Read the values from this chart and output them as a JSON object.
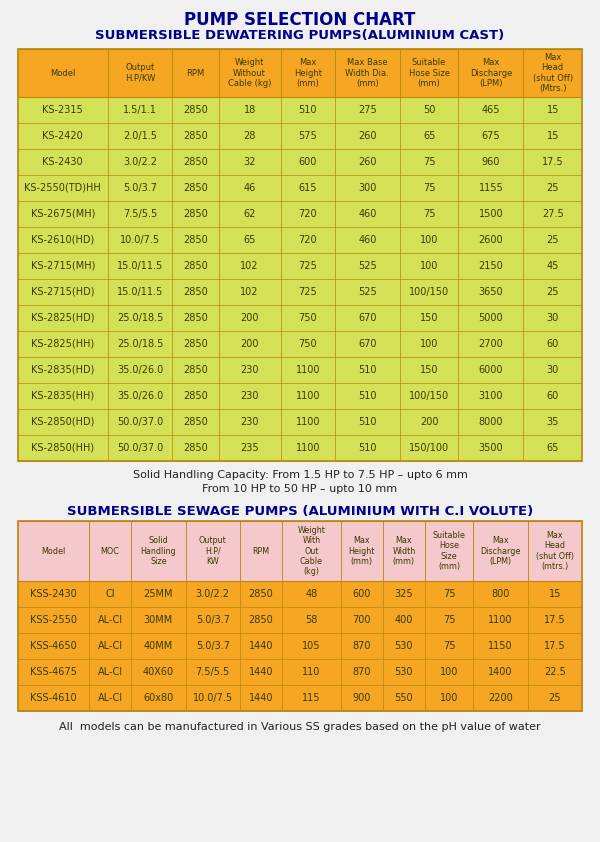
{
  "title1": "PUMP SELECTION CHART",
  "title2": "SUBMERSIBLE DEWATERING PUMPS(ALUMINIUM CAST)",
  "title3": "SUBMERSIBLE SEWAGE PUMPS (ALUMINIUM WITH C.I VOLUTE)",
  "note1": "Solid Handling Capacity: From 1.5 HP to 7.5 HP – upto 6 mm",
  "note2": "From 10 HP to 50 HP – upto 10 mm",
  "note3": "All  models can be manufactured in Various SS grades based on the pH value of water",
  "bg_color": "#f0f0f0",
  "table1_header_bg": "#f5a623",
  "table1_row_bg": "#d4e157",
  "table2_header_bg": "#f5c8cc",
  "table2_row_bg": "#f5a623",
  "border_color": "#b8860b",
  "title_color": "#00008B",
  "text_color": "#3a3a00",
  "table1_cols": [
    "Model",
    "Output\nH.P/KW",
    "RPM",
    "Weight\nWithout\nCable (kg)",
    "Max\nHeight\n(mm)",
    "Max Base\nWidth Dia.\n(mm)",
    "Suitable\nHose Size\n(mm)",
    "Max\nDischarge\n(LPM)",
    "Max\nHead\n(shut Off)\n(Mtrs.)"
  ],
  "table1_col_widths": [
    1.45,
    1.05,
    0.75,
    1.0,
    0.88,
    1.05,
    0.95,
    1.05,
    0.95
  ],
  "table1_data": [
    [
      "KS-2315",
      "1.5/1.1",
      "2850",
      "18",
      "510",
      "275",
      "50",
      "465",
      "15"
    ],
    [
      "KS-2420",
      "2.0/1.5",
      "2850",
      "28",
      "575",
      "260",
      "65",
      "675",
      "15"
    ],
    [
      "KS-2430",
      "3.0/2.2",
      "2850",
      "32",
      "600",
      "260",
      "75",
      "960",
      "17.5"
    ],
    [
      "KS-2550(TD)HH",
      "5.0/3.7",
      "2850",
      "46",
      "615",
      "300",
      "75",
      "1155",
      "25"
    ],
    [
      "KS-2675(MH)",
      "7.5/5.5",
      "2850",
      "62",
      "720",
      "460",
      "75",
      "1500",
      "27.5"
    ],
    [
      "KS-2610(HD)",
      "10.0/7.5",
      "2850",
      "65",
      "720",
      "460",
      "100",
      "2600",
      "25"
    ],
    [
      "KS-2715(MH)",
      "15.0/11.5",
      "2850",
      "102",
      "725",
      "525",
      "100",
      "2150",
      "45"
    ],
    [
      "KS-2715(HD)",
      "15.0/11.5",
      "2850",
      "102",
      "725",
      "525",
      "100/150",
      "3650",
      "25"
    ],
    [
      "KS-2825(HD)",
      "25.0/18.5",
      "2850",
      "200",
      "750",
      "670",
      "150",
      "5000",
      "30"
    ],
    [
      "KS-2825(HH)",
      "25.0/18.5",
      "2850",
      "200",
      "750",
      "670",
      "100",
      "2700",
      "60"
    ],
    [
      "KS-2835(HD)",
      "35.0/26.0",
      "2850",
      "230",
      "1100",
      "510",
      "150",
      "6000",
      "30"
    ],
    [
      "KS-2835(HH)",
      "35.0/26.0",
      "2850",
      "230",
      "1100",
      "510",
      "100/150",
      "3100",
      "60"
    ],
    [
      "KS-2850(HD)",
      "50.0/37.0",
      "2850",
      "230",
      "1100",
      "510",
      "200",
      "8000",
      "35"
    ],
    [
      "KS-2850(HH)",
      "50.0/37.0",
      "2850",
      "235",
      "1100",
      "510",
      "150/100",
      "3500",
      "65"
    ]
  ],
  "table2_cols": [
    "Model",
    "MOC",
    "Solid\nHandling\nSize",
    "Output\nH.P/\nKW",
    "RPM",
    "Weight\nWith\nOut\nCable\n(kg)",
    "Max\nHeight\n(mm)",
    "Max\nWidth\n(mm)",
    "Suitable\nHose\nSize\n(mm)",
    "Max\nDischarge\n(LPM)",
    "Max\nHead\n(shut Off)\n(mtrs.)"
  ],
  "table2_col_widths": [
    1.15,
    0.68,
    0.88,
    0.88,
    0.68,
    0.95,
    0.68,
    0.68,
    0.78,
    0.88,
    0.88
  ],
  "table2_data": [
    [
      "KSS-2430",
      "CI",
      "25MM",
      "3.0/2.2",
      "2850",
      "48",
      "600",
      "325",
      "75",
      "800",
      "15"
    ],
    [
      "KSS-2550",
      "AL-CI",
      "30MM",
      "5.0/3.7",
      "2850",
      "58",
      "700",
      "400",
      "75",
      "1100",
      "17.5"
    ],
    [
      "KSS-4650",
      "AL-CI",
      "40MM",
      "5.0/3.7",
      "1440",
      "105",
      "870",
      "530",
      "75",
      "1150",
      "17.5"
    ],
    [
      "KSS-4675",
      "AL-CI",
      "40X60",
      "7.5/5.5",
      "1440",
      "110",
      "870",
      "530",
      "100",
      "1400",
      "22.5"
    ],
    [
      "KSS-4610",
      "AL-CI",
      "60x80",
      "10.0/7.5",
      "1440",
      "115",
      "900",
      "550",
      "100",
      "2200",
      "25"
    ]
  ]
}
